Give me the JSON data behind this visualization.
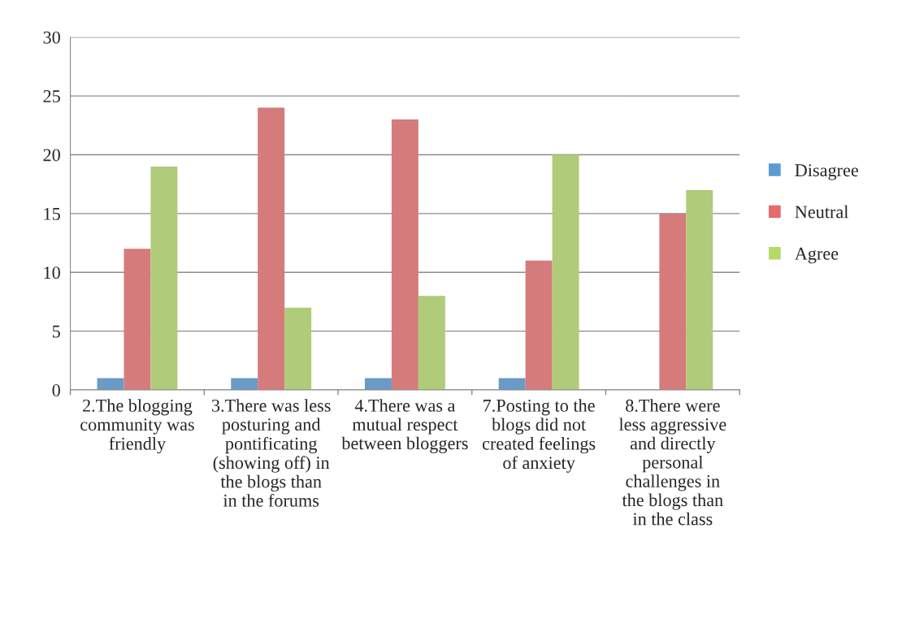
{
  "chart_data": {
    "type": "bar",
    "categories": [
      "2.The blogging community was friendly",
      "3.There was less posturing and pontificating (showing off) in the blogs than in the forums",
      "4.There was a mutual respect between bloggers",
      "7.Posting to the blogs did not created feelings of anxiety",
      "8.There were less aggressive and directly personal challenges in the blogs than in the class"
    ],
    "series": [
      {
        "name": "Disagree",
        "color": "#5b9bd5",
        "values": [
          1,
          1,
          1,
          1,
          0
        ]
      },
      {
        "name": "Neutral",
        "color": "#e46c6c",
        "values": [
          12,
          24,
          23,
          11,
          15
        ]
      },
      {
        "name": "Agree",
        "color": "#b5d96b",
        "values": [
          19,
          7,
          8,
          20,
          17
        ]
      }
    ],
    "ylim": [
      0,
      30
    ],
    "yticks": [
      0,
      5,
      10,
      15,
      20,
      25,
      30
    ],
    "grid": "y",
    "legend": "right"
  }
}
